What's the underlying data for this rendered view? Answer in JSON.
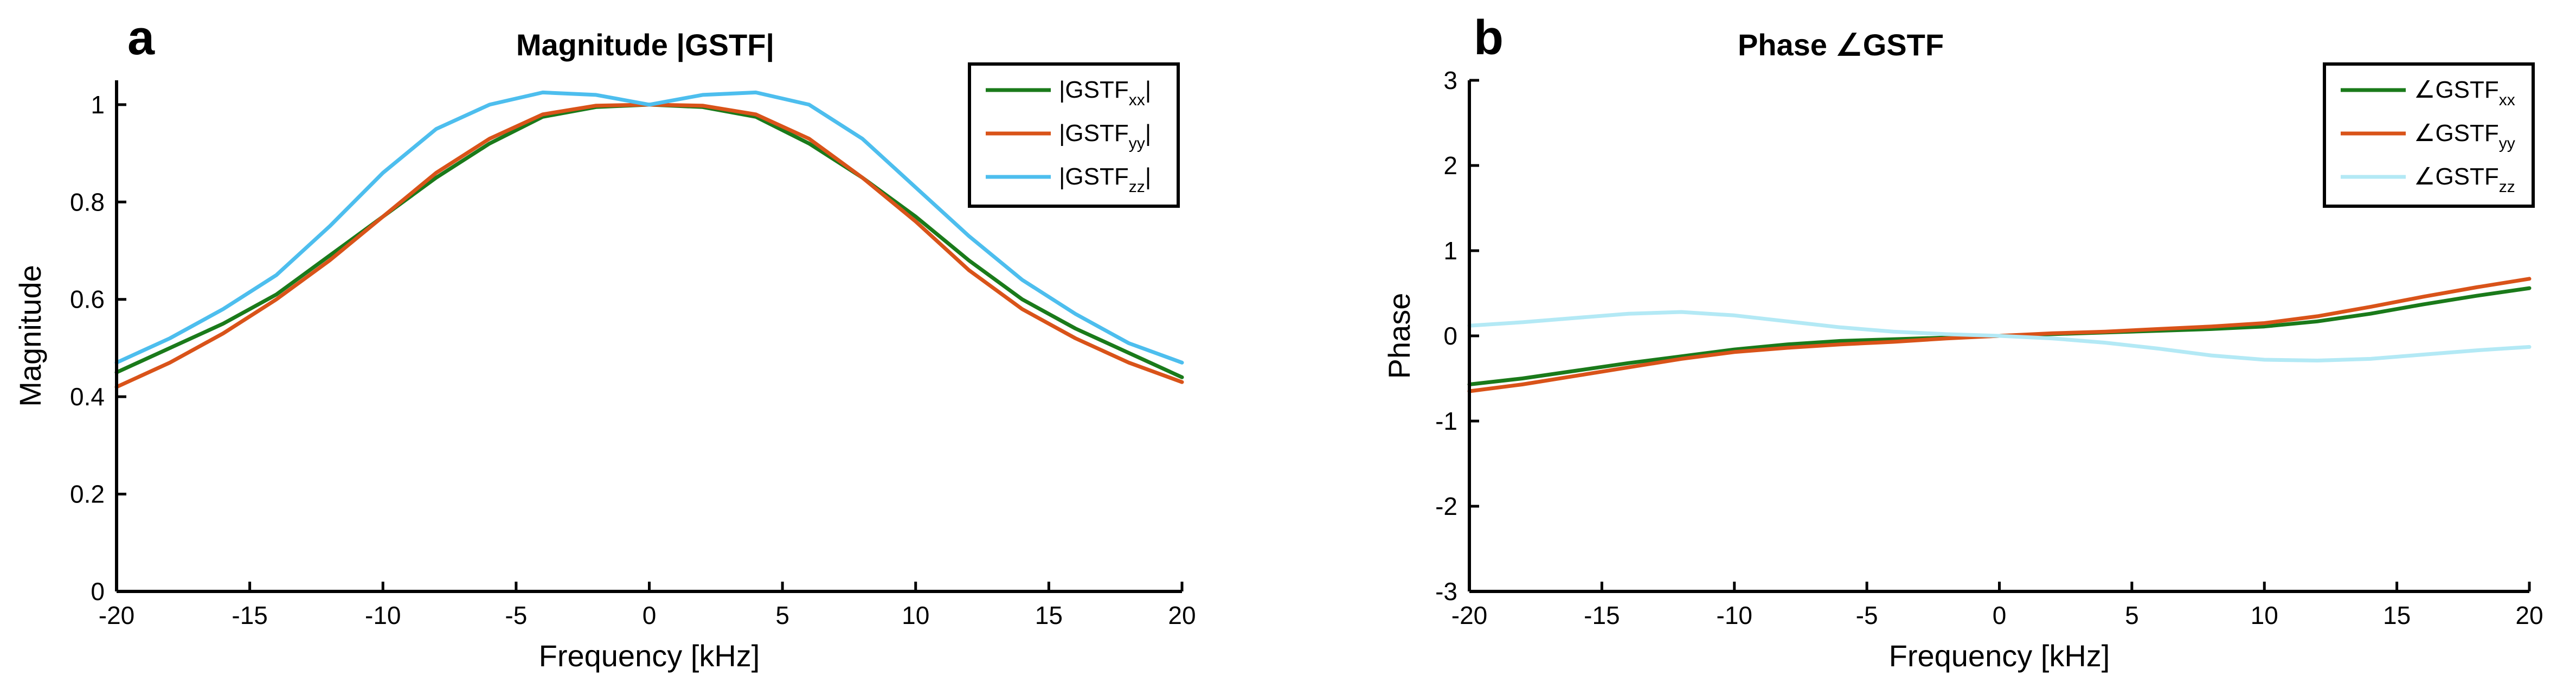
{
  "chart_data": [
    {
      "panel_label": "a",
      "type": "line",
      "title": "Magnitude |GSTF|",
      "xlabel": "Frequency [kHz]",
      "ylabel": "Magnitude",
      "xlim": [
        -20,
        20
      ],
      "ylim": [
        0,
        1.05
      ],
      "xticks": [
        -20,
        -15,
        -10,
        -5,
        0,
        5,
        10,
        15,
        20
      ],
      "xtick_labels": [
        "-20",
        "-15",
        "-10",
        "-5",
        "0",
        "5",
        "10",
        "15",
        "20"
      ],
      "yticks": [
        0,
        0.2,
        0.4,
        0.6,
        0.8,
        1
      ],
      "ytick_labels": [
        "0",
        "0.2",
        "0.4",
        "0.6",
        "0.8",
        "1"
      ],
      "legend_position": "top-right",
      "series": [
        {
          "name": "|GSTF",
          "sub": "xx",
          "suffix": "|",
          "color": "#1a7a1a",
          "x": [
            -20,
            -18,
            -16,
            -14,
            -12,
            -10,
            -8,
            -6,
            -4,
            -2,
            0,
            2,
            4,
            6,
            8,
            10,
            12,
            14,
            16,
            18,
            20
          ],
          "y": [
            0.45,
            0.5,
            0.55,
            0.61,
            0.69,
            0.77,
            0.85,
            0.92,
            0.975,
            0.995,
            1.0,
            0.995,
            0.975,
            0.92,
            0.85,
            0.77,
            0.68,
            0.6,
            0.54,
            0.49,
            0.44
          ]
        },
        {
          "name": "|GSTF",
          "sub": "yy",
          "suffix": "|",
          "color": "#d95319",
          "x": [
            -20,
            -18,
            -16,
            -14,
            -12,
            -10,
            -8,
            -6,
            -4,
            -2,
            0,
            2,
            4,
            6,
            8,
            10,
            12,
            14,
            16,
            18,
            20
          ],
          "y": [
            0.42,
            0.47,
            0.53,
            0.6,
            0.68,
            0.77,
            0.86,
            0.93,
            0.98,
            0.998,
            1.0,
            0.998,
            0.98,
            0.93,
            0.85,
            0.76,
            0.66,
            0.58,
            0.52,
            0.47,
            0.43
          ]
        },
        {
          "name": "|GSTF",
          "sub": "zz",
          "suffix": "|",
          "color": "#4dbeee",
          "x": [
            -20,
            -18,
            -16,
            -14,
            -12,
            -10,
            -8,
            -6,
            -4,
            -2,
            0,
            2,
            4,
            6,
            8,
            10,
            12,
            14,
            16,
            18,
            20
          ],
          "y": [
            0.47,
            0.52,
            0.58,
            0.65,
            0.75,
            0.86,
            0.95,
            1.0,
            1.025,
            1.02,
            1.0,
            1.02,
            1.025,
            1.0,
            0.93,
            0.83,
            0.73,
            0.64,
            0.57,
            0.51,
            0.47
          ]
        }
      ]
    },
    {
      "panel_label": "b",
      "type": "line",
      "title": "Phase ∠GSTF",
      "xlabel": "Frequency [kHz]",
      "ylabel": "Phase",
      "xlim": [
        -20,
        20
      ],
      "ylim": [
        -3,
        3
      ],
      "xticks": [
        -20,
        -15,
        -10,
        -5,
        0,
        5,
        10,
        15,
        20
      ],
      "xtick_labels": [
        "-20",
        "-15",
        "-10",
        "-5",
        "0",
        "5",
        "10",
        "15",
        "20"
      ],
      "yticks": [
        -3,
        -2,
        -1,
        0,
        1,
        2,
        3
      ],
      "ytick_labels": [
        "-3",
        "-2",
        "-1",
        "0",
        "1",
        "2",
        "3"
      ],
      "legend_position": "top-right",
      "series": [
        {
          "name": "∠GSTF",
          "sub": "xx",
          "suffix": "",
          "color": "#1a7a1a",
          "x": [
            -20,
            -18,
            -16,
            -14,
            -12,
            -10,
            -8,
            -6,
            -4,
            -2,
            0,
            2,
            4,
            6,
            8,
            10,
            12,
            14,
            16,
            18,
            20
          ],
          "y": [
            -0.57,
            -0.5,
            -0.41,
            -0.32,
            -0.24,
            -0.16,
            -0.1,
            -0.06,
            -0.04,
            -0.02,
            0.0,
            0.02,
            0.04,
            0.06,
            0.08,
            0.11,
            0.17,
            0.26,
            0.37,
            0.47,
            0.56
          ]
        },
        {
          "name": "∠GSTF",
          "sub": "yy",
          "suffix": "",
          "color": "#d95319",
          "x": [
            -20,
            -18,
            -16,
            -14,
            -12,
            -10,
            -8,
            -6,
            -4,
            -2,
            0,
            2,
            4,
            6,
            8,
            10,
            12,
            14,
            16,
            18,
            20
          ],
          "y": [
            -0.65,
            -0.57,
            -0.47,
            -0.37,
            -0.27,
            -0.19,
            -0.14,
            -0.1,
            -0.07,
            -0.03,
            0.0,
            0.03,
            0.05,
            0.08,
            0.11,
            0.15,
            0.23,
            0.34,
            0.46,
            0.57,
            0.67
          ]
        },
        {
          "name": "∠GSTF",
          "sub": "zz",
          "suffix": "",
          "color": "#b3e9f5",
          "x": [
            -20,
            -18,
            -16,
            -14,
            -12,
            -10,
            -8,
            -6,
            -4,
            -2,
            0,
            2,
            4,
            6,
            8,
            10,
            12,
            14,
            16,
            18,
            20
          ],
          "y": [
            0.12,
            0.16,
            0.21,
            0.26,
            0.28,
            0.24,
            0.17,
            0.1,
            0.05,
            0.02,
            0.0,
            -0.03,
            -0.08,
            -0.15,
            -0.23,
            -0.28,
            -0.29,
            -0.27,
            -0.22,
            -0.17,
            -0.13
          ]
        }
      ]
    }
  ]
}
